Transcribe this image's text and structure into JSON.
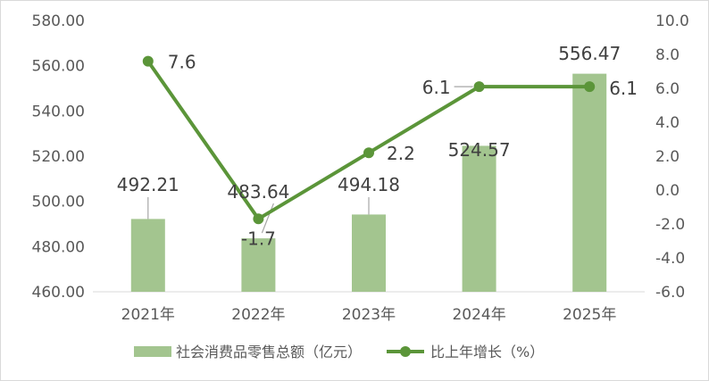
{
  "chart_data": {
    "type": "bar+line",
    "categories": [
      "2021年",
      "2022年",
      "2023年",
      "2024年",
      "2025年"
    ],
    "series": [
      {
        "name": "社会消费品零售总额（亿元）",
        "type": "bar",
        "axis": "left",
        "values": [
          492.21,
          483.64,
          494.18,
          524.57,
          556.47
        ],
        "labels": [
          "492.21",
          "483.64",
          "494.18",
          "524.57",
          "556.47"
        ],
        "color": "#a3c58f"
      },
      {
        "name": "比上年增长（%）",
        "type": "line",
        "axis": "right",
        "values": [
          7.6,
          -1.7,
          2.2,
          6.1,
          6.1
        ],
        "labels": [
          "7.6",
          "-1.7",
          "2.2",
          "6.1",
          "6.1"
        ],
        "color": "#5b9539"
      }
    ],
    "y_left": {
      "range": [
        460,
        580
      ],
      "ticks": [
        "460.00",
        "480.00",
        "500.00",
        "520.00",
        "540.00",
        "560.00",
        "580.00"
      ]
    },
    "y_right": {
      "range": [
        -6,
        10
      ],
      "ticks": [
        "-6.0",
        "-4.0",
        "-2.0",
        "0.0",
        "2.0",
        "4.0",
        "6.0",
        "8.0",
        "10.0"
      ]
    },
    "grid": false,
    "legend": "bottom"
  }
}
